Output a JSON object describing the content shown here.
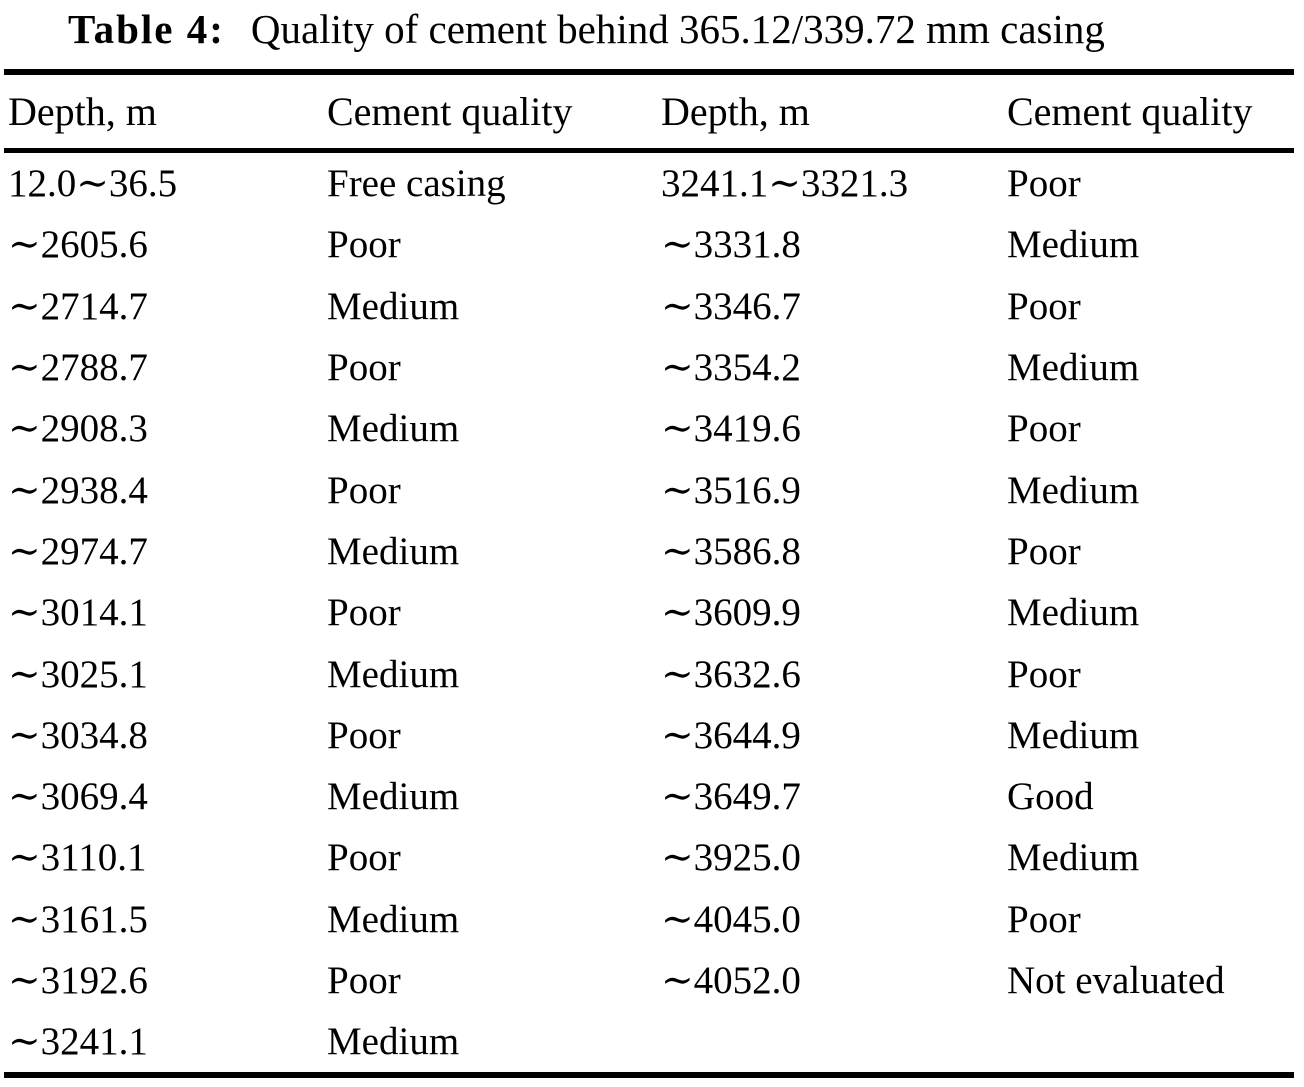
{
  "title": {
    "label": "Table 4:",
    "caption": "Quality of cement behind 365.12/339.72 mm casing"
  },
  "table": {
    "columns": [
      "Depth, m",
      "Cement quality",
      "Depth, m",
      "Cement quality"
    ],
    "rows": [
      [
        "12.0∼36.5",
        "Free casing",
        "3241.1∼3321.3",
        "Poor"
      ],
      [
        "∼2605.6",
        "Poor",
        "∼3331.8",
        "Medium"
      ],
      [
        "∼2714.7",
        "Medium",
        "∼3346.7",
        "Poor"
      ],
      [
        "∼2788.7",
        "Poor",
        "∼3354.2",
        "Medium"
      ],
      [
        "∼2908.3",
        "Medium",
        "∼3419.6",
        "Poor"
      ],
      [
        "∼2938.4",
        "Poor",
        "∼3516.9",
        "Medium"
      ],
      [
        "∼2974.7",
        "Medium",
        "∼3586.8",
        "Poor"
      ],
      [
        "∼3014.1",
        "Poor",
        "∼3609.9",
        "Medium"
      ],
      [
        "∼3025.1",
        "Medium",
        "∼3632.6",
        "Poor"
      ],
      [
        "∼3034.8",
        "Poor",
        "∼3644.9",
        "Medium"
      ],
      [
        "∼3069.4",
        "Medium",
        "∼3649.7",
        "Good"
      ],
      [
        "∼3110.1",
        "Poor",
        "∼3925.0",
        "Medium"
      ],
      [
        "∼3161.5",
        "Medium",
        "∼4045.0",
        "Poor"
      ],
      [
        "∼3192.6",
        "Poor",
        "∼4052.0",
        "Not evaluated"
      ],
      [
        "∼3241.1",
        "Medium",
        "",
        ""
      ]
    ]
  },
  "colors": {
    "background": "#ffffff",
    "text": "#000000",
    "rule": "#000000"
  }
}
